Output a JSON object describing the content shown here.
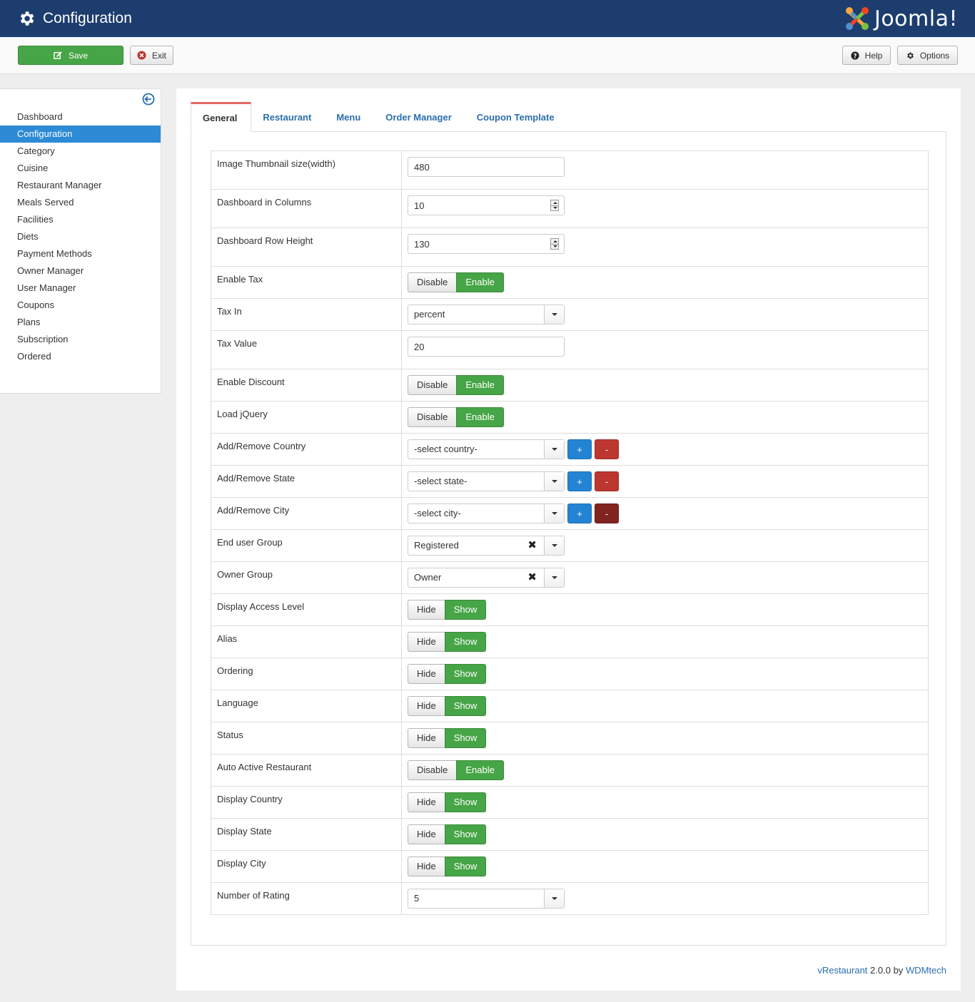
{
  "header": {
    "title": "Configuration",
    "brand": "Joomla!",
    "colors": {
      "bar": "#1c3d6e"
    }
  },
  "toolbar": {
    "save_label": "Save",
    "exit_label": "Exit",
    "help_label": "Help",
    "options_label": "Options"
  },
  "sidebar": {
    "items": [
      {
        "label": "Dashboard"
      },
      {
        "label": "Configuration",
        "active": true
      },
      {
        "label": "Category"
      },
      {
        "label": "Cuisine"
      },
      {
        "label": "Restaurant Manager"
      },
      {
        "label": "Meals Served"
      },
      {
        "label": "Facilities"
      },
      {
        "label": "Diets"
      },
      {
        "label": "Payment Methods"
      },
      {
        "label": "Owner Manager"
      },
      {
        "label": "User Manager"
      },
      {
        "label": "Coupons"
      },
      {
        "label": "Plans"
      },
      {
        "label": "Subscription"
      },
      {
        "label": "Ordered"
      }
    ]
  },
  "tabs": [
    {
      "label": "General",
      "active": true
    },
    {
      "label": "Restaurant"
    },
    {
      "label": "Menu"
    },
    {
      "label": "Order Manager"
    },
    {
      "label": "Coupon Template"
    }
  ],
  "settings": {
    "thumb_width": {
      "label": "Image Thumbnail size(width)",
      "value": "480"
    },
    "dash_columns": {
      "label": "Dashboard in Columns",
      "value": "10"
    },
    "dash_row_height": {
      "label": "Dashboard Row Height",
      "value": "130"
    },
    "enable_tax": {
      "label": "Enable Tax",
      "off": "Disable",
      "on": "Enable"
    },
    "tax_in": {
      "label": "Tax In",
      "value": "percent"
    },
    "tax_value": {
      "label": "Tax Value",
      "value": "20"
    },
    "enable_discount": {
      "label": "Enable Discount",
      "off": "Disable",
      "on": "Enable"
    },
    "load_jquery": {
      "label": "Load jQuery",
      "off": "Disable",
      "on": "Enable"
    },
    "country": {
      "label": "Add/Remove Country",
      "value": "-select country-",
      "add": "+",
      "remove": "-"
    },
    "state": {
      "label": "Add/Remove State",
      "value": "-select state-",
      "add": "+",
      "remove": "-"
    },
    "city": {
      "label": "Add/Remove City",
      "value": "-select city-",
      "add": "+",
      "remove": "-"
    },
    "end_user_group": {
      "label": "End user Group",
      "value": "Registered"
    },
    "owner_group": {
      "label": "Owner Group",
      "value": "Owner"
    },
    "display_access": {
      "label": "Display Access Level",
      "off": "Hide",
      "on": "Show"
    },
    "alias": {
      "label": "Alias",
      "off": "Hide",
      "on": "Show"
    },
    "ordering": {
      "label": "Ordering",
      "off": "Hide",
      "on": "Show"
    },
    "language": {
      "label": "Language",
      "off": "Hide",
      "on": "Show"
    },
    "status": {
      "label": "Status",
      "off": "Hide",
      "on": "Show"
    },
    "auto_active": {
      "label": "Auto Active Restaurant",
      "off": "Disable",
      "on": "Enable"
    },
    "display_country": {
      "label": "Display Country",
      "off": "Hide",
      "on": "Show"
    },
    "display_state": {
      "label": "Display State",
      "off": "Hide",
      "on": "Show"
    },
    "display_city": {
      "label": "Display City",
      "off": "Hide",
      "on": "Show"
    },
    "rating": {
      "label": "Number of Rating",
      "value": "5"
    }
  },
  "footer": {
    "product": "vRestaurant",
    "version": "2.0.0 by",
    "vendor": "WDMtech"
  }
}
